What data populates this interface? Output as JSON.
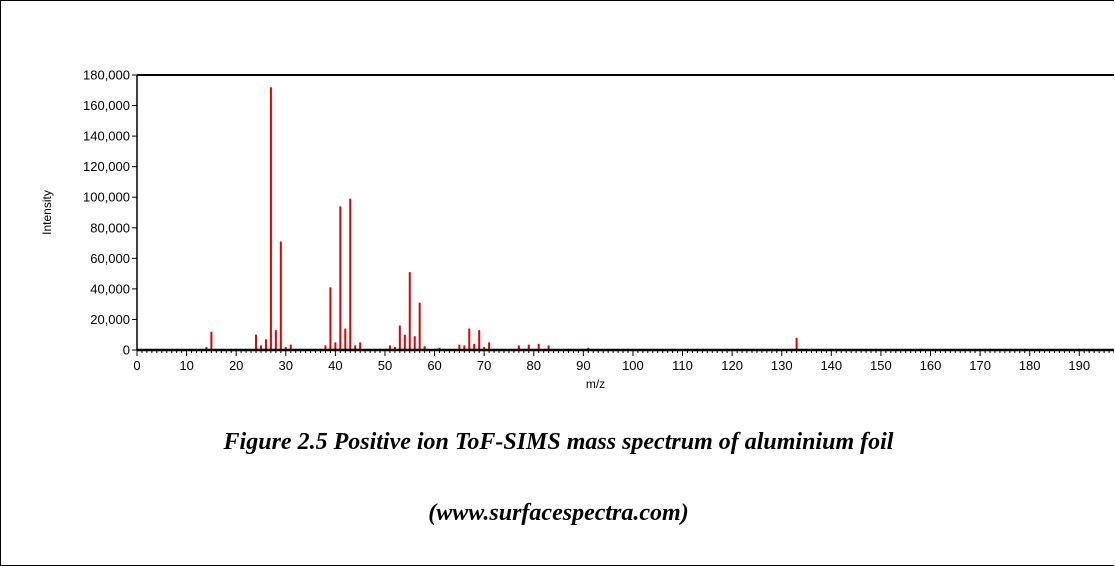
{
  "colors": {
    "peak": "#e00000",
    "axis": "#000000"
  },
  "caption": {
    "line1": "Figure 2.5 Positive ion ToF-SIMS mass spectrum of aluminium foil",
    "line2": "(www.surfacespectra.com)"
  },
  "chart_data": {
    "type": "bar",
    "title": "",
    "xlabel": "m/z",
    "ylabel": "Intensity",
    "xlim": [
      0,
      197
    ],
    "ylim": [
      0,
      180000
    ],
    "x_ticks": [
      0,
      10,
      20,
      30,
      40,
      50,
      60,
      70,
      80,
      90,
      100,
      110,
      120,
      130,
      140,
      150,
      160,
      170,
      180,
      190
    ],
    "y_ticks": [
      0,
      20000,
      40000,
      60000,
      80000,
      100000,
      120000,
      140000,
      160000,
      180000
    ],
    "y_tick_labels": [
      "0",
      "20,000",
      "40,000",
      "60,000",
      "80,000",
      "100,000",
      "120,000",
      "140,000",
      "160,000",
      "180,000"
    ],
    "grid": false,
    "series": [
      {
        "x": [
          14,
          15,
          24,
          25,
          26,
          27,
          28,
          29,
          30,
          31,
          38,
          39,
          40,
          41,
          42,
          43,
          44,
          45,
          51,
          52,
          53,
          54,
          55,
          56,
          57,
          58,
          61,
          65,
          66,
          67,
          68,
          69,
          70,
          71,
          77,
          79,
          81,
          83,
          91,
          133
        ],
        "values": [
          2000,
          12000,
          10000,
          3000,
          7000,
          172000,
          13000,
          71000,
          2000,
          3500,
          3000,
          41000,
          5000,
          94000,
          14000,
          99000,
          3000,
          5000,
          3000,
          2000,
          16000,
          10000,
          51000,
          9000,
          31000,
          2500,
          1500,
          3500,
          3000,
          14000,
          4000,
          13000,
          2000,
          5000,
          3000,
          3500,
          4000,
          3000,
          1500,
          8000
        ]
      }
    ]
  }
}
